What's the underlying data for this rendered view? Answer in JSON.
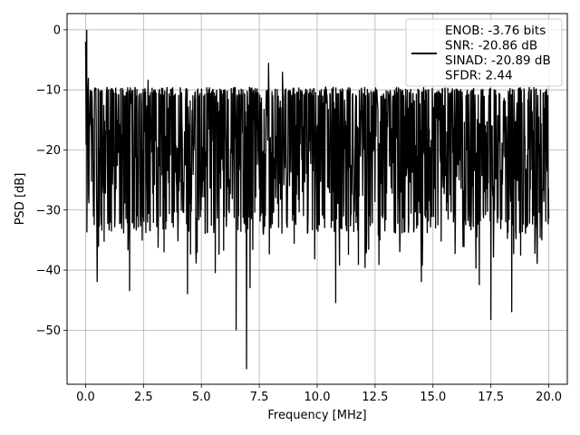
{
  "chart_data": {
    "type": "line",
    "title": "",
    "xlabel": "Frequency [MHz]",
    "ylabel": "PSD [dB]",
    "xlim": [
      -0.8,
      20.8
    ],
    "ylim": [
      -59,
      2.7
    ],
    "x_ticks": [
      0.0,
      2.5,
      5.0,
      7.5,
      10.0,
      12.5,
      15.0,
      17.5,
      20.0
    ],
    "x_tick_labels": [
      "0.0",
      "2.5",
      "5.0",
      "7.5",
      "10.0",
      "12.5",
      "15.0",
      "17.5",
      "20.0"
    ],
    "y_ticks": [
      0,
      -10,
      -20,
      -30,
      -40,
      -50
    ],
    "y_tick_labels": [
      "0",
      "−10",
      "−20",
      "−30",
      "−40",
      "−50"
    ],
    "grid": true,
    "legend_position": "top-right",
    "line_color": "#000000",
    "series": [
      {
        "legend_lines": [
          "ENOB: -3.76 bits",
          "SNR: -20.86 dB",
          "SINAD: -20.89 dB",
          "SFDR: 2.44"
        ],
        "x_range": [
          0.0,
          20.0
        ],
        "noise_floor_db": -20,
        "noise_band_db": [
          -32,
          -9
        ],
        "peaks": [
          {
            "x": 0.0,
            "y": -2.0
          },
          {
            "x": 0.05,
            "y": 0.0
          },
          {
            "x": 0.12,
            "y": -8.0
          },
          {
            "x": 7.9,
            "y": -5.5
          },
          {
            "x": 8.5,
            "y": -7.0
          },
          {
            "x": 2.7,
            "y": -8.3
          }
        ],
        "dips": [
          {
            "x": 0.5,
            "y": -42.0
          },
          {
            "x": 1.9,
            "y": -43.5
          },
          {
            "x": 4.4,
            "y": -44.0
          },
          {
            "x": 5.6,
            "y": -40.5
          },
          {
            "x": 6.5,
            "y": -50.0
          },
          {
            "x": 6.95,
            "y": -56.5
          },
          {
            "x": 7.1,
            "y": -43.0
          },
          {
            "x": 10.8,
            "y": -45.5
          },
          {
            "x": 14.5,
            "y": -42.0
          },
          {
            "x": 17.0,
            "y": -42.5
          },
          {
            "x": 17.5,
            "y": -48.3
          },
          {
            "x": 18.4,
            "y": -47.0
          }
        ]
      }
    ]
  }
}
